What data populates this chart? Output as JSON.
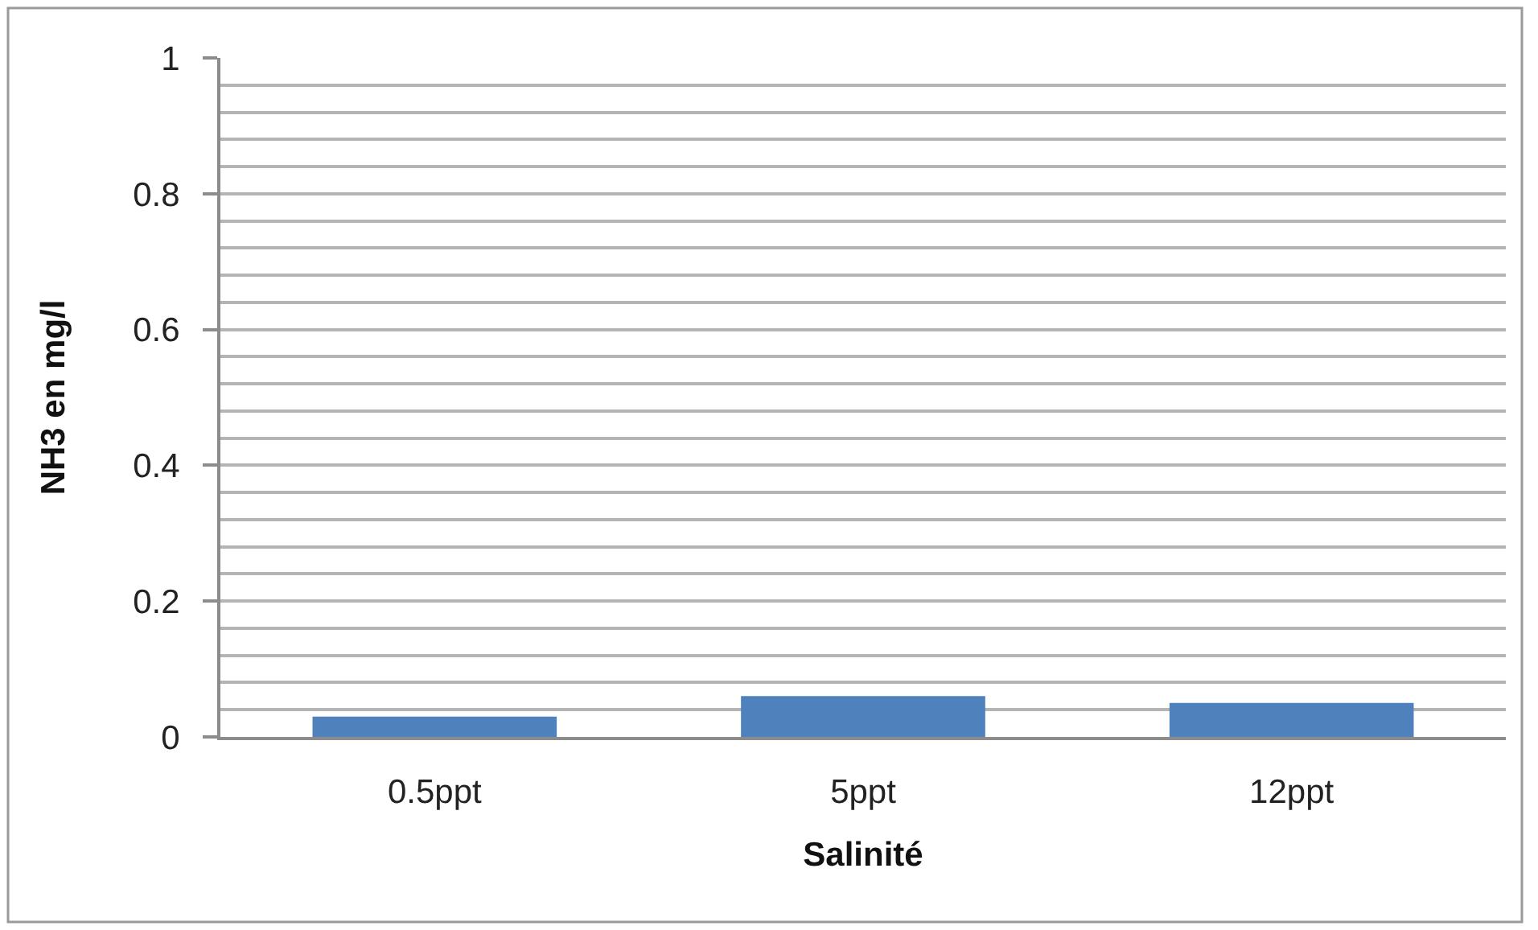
{
  "chart_data": {
    "type": "bar",
    "xlabel": "Salinité",
    "ylabel": "NH3 en mg/l",
    "categories": [
      "0.5ppt",
      "5ppt",
      "12ppt"
    ],
    "values": [
      0.03,
      0.06,
      0.05
    ],
    "color": "#4f81bd",
    "ylim": [
      0,
      1
    ],
    "yticks": [
      0,
      {
        "value": 0.04,
        "label": null
      },
      {
        "value": 0.08,
        "label": null
      },
      {
        "value": 0.12,
        "label": null
      },
      {
        "value": 0.16,
        "label": null
      },
      0.2,
      {
        "value": 0.24,
        "label": null
      },
      {
        "value": 0.28,
        "label": null
      },
      {
        "value": 0.32,
        "label": null
      },
      {
        "value": 0.36,
        "label": null
      },
      0.4,
      {
        "value": 0.44,
        "label": null
      },
      {
        "value": 0.48,
        "label": null
      },
      {
        "value": 0.52,
        "label": null
      },
      {
        "value": 0.56,
        "label": null
      },
      0.6,
      {
        "value": 0.64,
        "label": null
      },
      {
        "value": 0.68,
        "label": null
      },
      {
        "value": 0.72,
        "label": null
      },
      {
        "value": 0.76,
        "label": null
      },
      0.8,
      {
        "value": 0.84,
        "label": null
      },
      {
        "value": 0.88,
        "label": null
      },
      {
        "value": 0.92,
        "label": null
      },
      {
        "value": 0.96,
        "label": null
      },
      1
    ],
    "grid": "y"
  }
}
